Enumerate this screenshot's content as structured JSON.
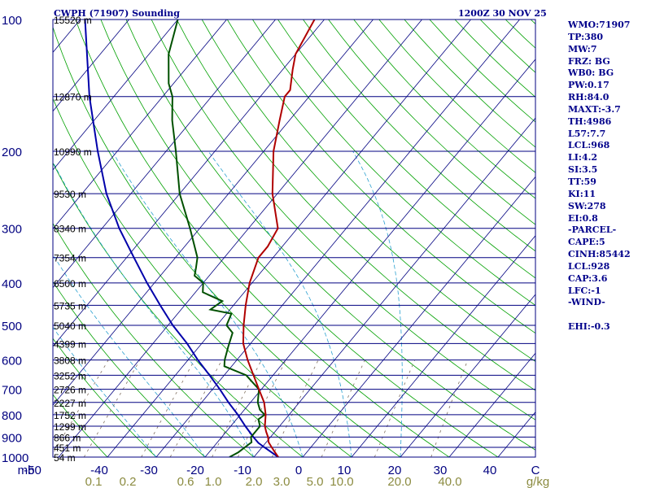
{
  "colors": {
    "background": "#ffffff",
    "frame": "#000080",
    "isobar": "#000080",
    "isotherm": "#000080",
    "dry_adiabat": "#00a000",
    "moist_adiabat": "#2aa0d0",
    "mixing_ratio": "#807060",
    "temperature": "#b00000",
    "dewpoint": "#005000",
    "parcel": "#0000aa",
    "pressure_label": "#000080",
    "height_label": "#000000",
    "temp_label": "#000080",
    "mixing_label": "#8b8b40"
  },
  "header": {
    "station_title": "CWPH (71907) Sounding",
    "date_title": "1200Z 30 NOV 25"
  },
  "sidebar": {
    "lines": [
      "WMO:71907",
      "TP:380",
      "MW:7",
      "FRZ: BG",
      "WB0: BG",
      "PW:0.17",
      "RH:84.0",
      "MAXT:-3.7",
      "TH:4986",
      "L57:7.7",
      "LCL:968",
      "LI:4.2",
      "SI:3.5",
      "TT:59",
      "KI:11",
      "SW:278",
      "EI:0.8",
      "-PARCEL-",
      "CAPE:5",
      "CINH:85442",
      "LCL:928",
      "CAP:3.6",
      "LFC:-1",
      "-WIND-",
      "",
      "EHI:-0.3"
    ]
  },
  "chart_data": {
    "type": "skew-t",
    "title": "CWPH (71907) Sounding",
    "pressure_unit": "mb",
    "temperature_unit": "C",
    "mixing_ratio_unit": "g/kg",
    "ylim": [
      1000,
      100
    ],
    "pressure_axis_labels": [
      100,
      200,
      300,
      400,
      500,
      600,
      700,
      800,
      900,
      1000
    ],
    "isobar_levels": [
      100,
      150,
      200,
      250,
      300,
      350,
      400,
      450,
      500,
      550,
      600,
      650,
      700,
      750,
      800,
      850,
      900,
      950,
      1000
    ],
    "height_labels": [
      {
        "p": 100,
        "text": "15520 m"
      },
      {
        "p": 150,
        "text": "12870 m"
      },
      {
        "p": 200,
        "text": "10990 m"
      },
      {
        "p": 250,
        "text": "9530 m"
      },
      {
        "p": 300,
        "text": "8340 m"
      },
      {
        "p": 350,
        "text": "7354 m"
      },
      {
        "p": 400,
        "text": "6500 m"
      },
      {
        "p": 450,
        "text": "5735 m"
      },
      {
        "p": 500,
        "text": "5040 m"
      },
      {
        "p": 550,
        "text": "4399 m"
      },
      {
        "p": 600,
        "text": "3808 m"
      },
      {
        "p": 650,
        "text": "3252 m"
      },
      {
        "p": 700,
        "text": "2726 m"
      },
      {
        "p": 750,
        "text": "2227 m"
      },
      {
        "p": 800,
        "text": "1752 m"
      },
      {
        "p": 850,
        "text": "1299 m"
      },
      {
        "p": 900,
        "text": "866 m"
      },
      {
        "p": 950,
        "text": "451 m"
      },
      {
        "p": 1000,
        "text": "54 m"
      }
    ],
    "temperature_labels": [
      "mb",
      "-50",
      "-40",
      "-30",
      "-20",
      "-10",
      "0",
      "10",
      "20",
      "30",
      "40",
      "C"
    ],
    "mixing_ratio_labels": [
      "0.1",
      "0.2",
      "0.6",
      "1.0",
      "2.0",
      "3.0",
      "5.0",
      "10.0",
      "20.0",
      "40.0",
      "g/kg"
    ],
    "temperature_profile": [
      {
        "p": 1000,
        "t": 5.0
      },
      {
        "p": 975,
        "t": 3.5
      },
      {
        "p": 950,
        "t": 2.0
      },
      {
        "p": 925,
        "t": 0.5
      },
      {
        "p": 900,
        "t": -0.5
      },
      {
        "p": 875,
        "t": -1.8
      },
      {
        "p": 850,
        "t": -3.0
      },
      {
        "p": 800,
        "t": -4.8
      },
      {
        "p": 750,
        "t": -7.2
      },
      {
        "p": 700,
        "t": -10.5
      },
      {
        "p": 650,
        "t": -14.0
      },
      {
        "p": 600,
        "t": -17.8
      },
      {
        "p": 550,
        "t": -21.5
      },
      {
        "p": 500,
        "t": -24.5
      },
      {
        "p": 450,
        "t": -27.5
      },
      {
        "p": 400,
        "t": -30.5
      },
      {
        "p": 350,
        "t": -33.0
      },
      {
        "p": 330,
        "t": -33.0
      },
      {
        "p": 300,
        "t": -34.0
      },
      {
        "p": 250,
        "t": -41.0
      },
      {
        "p": 200,
        "t": -48.0
      },
      {
        "p": 170,
        "t": -52.0
      },
      {
        "p": 150,
        "t": -55.0
      },
      {
        "p": 145,
        "t": -55.0
      },
      {
        "p": 130,
        "t": -58.0
      },
      {
        "p": 120,
        "t": -60.0
      },
      {
        "p": 100,
        "t": -62.0
      }
    ],
    "dewpoint_profile": [
      {
        "p": 1000,
        "t": -5.0
      },
      {
        "p": 975,
        "t": -4.0
      },
      {
        "p": 950,
        "t": -3.5
      },
      {
        "p": 925,
        "t": -3.0
      },
      {
        "p": 900,
        "t": -4.0
      },
      {
        "p": 850,
        "t": -4.0
      },
      {
        "p": 820,
        "t": -5.5
      },
      {
        "p": 800,
        "t": -5.0
      },
      {
        "p": 780,
        "t": -6.8
      },
      {
        "p": 750,
        "t": -8.5
      },
      {
        "p": 700,
        "t": -10.5
      },
      {
        "p": 650,
        "t": -15.5
      },
      {
        "p": 620,
        "t": -21.5
      },
      {
        "p": 600,
        "t": -22.5
      },
      {
        "p": 560,
        "t": -24.0
      },
      {
        "p": 520,
        "t": -25.5
      },
      {
        "p": 500,
        "t": -28.0
      },
      {
        "p": 470,
        "t": -29.0
      },
      {
        "p": 460,
        "t": -34.0
      },
      {
        "p": 440,
        "t": -33.0
      },
      {
        "p": 420,
        "t": -38.5
      },
      {
        "p": 400,
        "t": -40.0
      },
      {
        "p": 385,
        "t": -43.0
      },
      {
        "p": 370,
        "t": -44.0
      },
      {
        "p": 350,
        "t": -45.5
      },
      {
        "p": 300,
        "t": -52.0
      },
      {
        "p": 250,
        "t": -60.0
      },
      {
        "p": 200,
        "t": -68.0
      },
      {
        "p": 170,
        "t": -74.0
      },
      {
        "p": 150,
        "t": -78.0
      },
      {
        "p": 140,
        "t": -81.0
      },
      {
        "p": 120,
        "t": -86.0
      },
      {
        "p": 100,
        "t": -90.0
      }
    ],
    "parcel_profile": [
      {
        "p": 1000,
        "t": 5.0
      },
      {
        "p": 950,
        "t": 0.5
      },
      {
        "p": 928,
        "t": -1.5
      },
      {
        "p": 900,
        "t": -3.5
      },
      {
        "p": 850,
        "t": -7.0
      },
      {
        "p": 800,
        "t": -10.5
      },
      {
        "p": 750,
        "t": -14.5
      },
      {
        "p": 700,
        "t": -18.5
      },
      {
        "p": 650,
        "t": -23.0
      },
      {
        "p": 600,
        "t": -28.0
      },
      {
        "p": 550,
        "t": -33.0
      },
      {
        "p": 500,
        "t": -39.0
      },
      {
        "p": 450,
        "t": -45.0
      },
      {
        "p": 400,
        "t": -51.5
      },
      {
        "p": 350,
        "t": -58.5
      },
      {
        "p": 300,
        "t": -66.5
      },
      {
        "p": 250,
        "t": -75.0
      },
      {
        "p": 200,
        "t": -84.0
      },
      {
        "p": 150,
        "t": -95.0
      },
      {
        "p": 100,
        "t": -109.0
      }
    ]
  }
}
